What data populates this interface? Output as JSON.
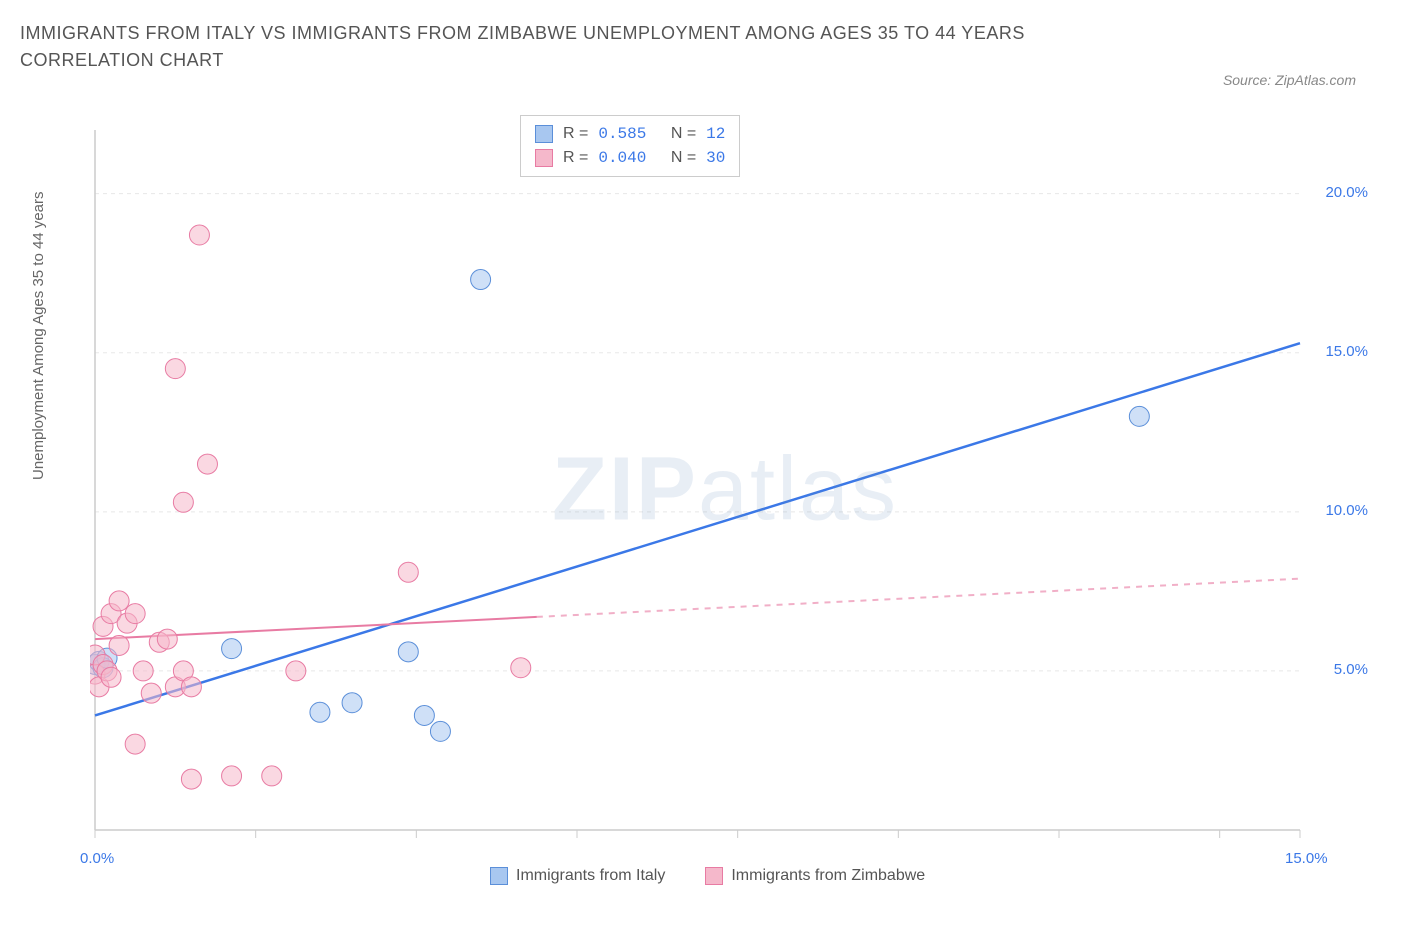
{
  "title": "IMMIGRANTS FROM ITALY VS IMMIGRANTS FROM ZIMBABWE UNEMPLOYMENT AMONG AGES 35 TO 44 YEARS CORRELATION CHART",
  "source": "Source: ZipAtlas.com",
  "y_axis_label": "Unemployment Among Ages 35 to 44 years",
  "watermark_bold": "ZIP",
  "watermark_light": "atlas",
  "chart": {
    "type": "scatter",
    "xlim": [
      0,
      15
    ],
    "ylim": [
      0,
      22
    ],
    "x_ticks": [
      0,
      2,
      4,
      6,
      8,
      10,
      12,
      14,
      15
    ],
    "x_tick_labels": {
      "0": "0.0%",
      "15": "15.0%"
    },
    "y_ticks": [
      5,
      10,
      15,
      20
    ],
    "y_tick_labels": {
      "5": "5.0%",
      "10": "10.0%",
      "15": "15.0%",
      "20": "20.0%"
    },
    "grid_color": "#e8e8e8",
    "axis_color": "#cccccc",
    "background": "#ffffff",
    "marker_radius": 10,
    "marker_opacity": 0.55,
    "series": [
      {
        "name": "Immigrants from Italy",
        "color_fill": "#a8c7f0",
        "color_stroke": "#5b8fd9",
        "line_color": "#3b78e7",
        "line_width": 2.5,
        "line_dash": "none",
        "R": "0.585",
        "N": "12",
        "regression": {
          "x1": 0,
          "y1": 3.6,
          "x2": 15,
          "y2": 15.3
        },
        "solid_until_x": 15,
        "points": [
          [
            0.0,
            5.2
          ],
          [
            0.05,
            5.3
          ],
          [
            0.1,
            5.1
          ],
          [
            0.15,
            5.4
          ],
          [
            1.7,
            5.7
          ],
          [
            2.8,
            3.7
          ],
          [
            3.2,
            4.0
          ],
          [
            3.9,
            5.6
          ],
          [
            4.1,
            3.6
          ],
          [
            4.3,
            3.1
          ],
          [
            4.8,
            17.3
          ],
          [
            13.0,
            13.0
          ]
        ]
      },
      {
        "name": "Immigrants from Zimbabwe",
        "color_fill": "#f5b8cb",
        "color_stroke": "#e87ba3",
        "line_color": "#e87ba3",
        "line_width": 2,
        "line_dash": "dashed",
        "R": "0.040",
        "N": "30",
        "regression": {
          "x1": 0,
          "y1": 6.0,
          "x2": 15,
          "y2": 7.9
        },
        "solid_until_x": 5.5,
        "points": [
          [
            0.0,
            4.9
          ],
          [
            0.0,
            5.5
          ],
          [
            0.05,
            4.5
          ],
          [
            0.1,
            5.2
          ],
          [
            0.1,
            6.4
          ],
          [
            0.15,
            5.0
          ],
          [
            0.2,
            6.8
          ],
          [
            0.2,
            4.8
          ],
          [
            0.3,
            5.8
          ],
          [
            0.3,
            7.2
          ],
          [
            0.4,
            6.5
          ],
          [
            0.5,
            2.7
          ],
          [
            0.5,
            6.8
          ],
          [
            0.6,
            5.0
          ],
          [
            0.7,
            4.3
          ],
          [
            0.8,
            5.9
          ],
          [
            0.9,
            6.0
          ],
          [
            1.0,
            4.5
          ],
          [
            1.0,
            14.5
          ],
          [
            1.1,
            5.0
          ],
          [
            1.1,
            10.3
          ],
          [
            1.2,
            4.5
          ],
          [
            1.2,
            1.6
          ],
          [
            1.3,
            18.7
          ],
          [
            1.4,
            11.5
          ],
          [
            1.7,
            1.7
          ],
          [
            2.2,
            1.7
          ],
          [
            2.5,
            5.0
          ],
          [
            3.9,
            8.1
          ],
          [
            5.3,
            5.1
          ]
        ]
      }
    ]
  },
  "legend_labels": {
    "r_label": "R =",
    "n_label": "N ="
  }
}
